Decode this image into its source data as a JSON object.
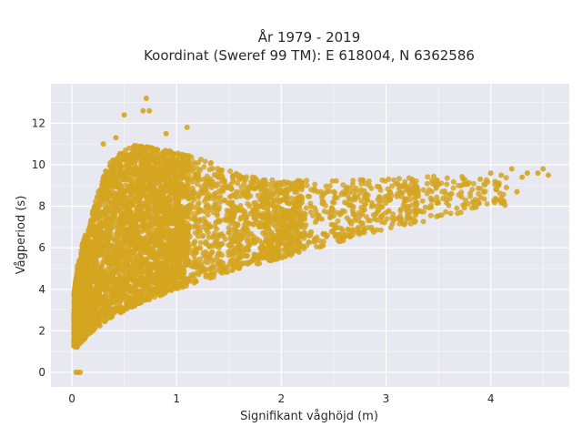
{
  "chart_data": {
    "type": "scatter",
    "title": "År 1979 - 2019",
    "subtitle": "Koordinat (Sweref 99 TM): E 618004, N 6362586",
    "xlabel": "Signifikant våghöjd (m)",
    "ylabel": "Vågperiod (s)",
    "xlim": [
      -0.2,
      4.75
    ],
    "ylim": [
      -0.7,
      13.9
    ],
    "x_ticks": [
      0,
      1,
      2,
      3,
      4
    ],
    "y_ticks": [
      0,
      2,
      4,
      6,
      8,
      10,
      12
    ],
    "grid": true,
    "legend": "none",
    "marker_color": "#d4a520",
    "plot_background": "#e8e8f0",
    "grid_color": "#ffffff",
    "envelope": {
      "description_of_point_cloud_bounds": "",
      "upper": [
        [
          0.0,
          3.0
        ],
        [
          0.05,
          5.0
        ],
        [
          0.1,
          6.2
        ],
        [
          0.15,
          7.0
        ],
        [
          0.2,
          7.8
        ],
        [
          0.3,
          9.5
        ],
        [
          0.4,
          10.4
        ],
        [
          0.6,
          11.0
        ],
        [
          0.8,
          10.8
        ],
        [
          1.0,
          10.6
        ],
        [
          1.3,
          10.2
        ],
        [
          1.6,
          9.5
        ],
        [
          2.0,
          9.2
        ],
        [
          2.5,
          9.3
        ],
        [
          3.0,
          9.3
        ],
        [
          3.5,
          9.5
        ],
        [
          4.0,
          9.4
        ]
      ],
      "lower": [
        [
          0.0,
          1.3
        ],
        [
          0.05,
          1.2
        ],
        [
          0.1,
          1.5
        ],
        [
          0.2,
          2.0
        ],
        [
          0.4,
          2.7
        ],
        [
          0.6,
          3.2
        ],
        [
          0.8,
          3.6
        ],
        [
          1.0,
          4.0
        ],
        [
          1.3,
          4.5
        ],
        [
          1.6,
          5.0
        ],
        [
          2.0,
          5.5
        ],
        [
          2.5,
          6.2
        ],
        [
          3.0,
          6.9
        ],
        [
          3.5,
          7.4
        ],
        [
          4.0,
          8.0
        ]
      ]
    },
    "outliers": [
      [
        0.71,
        13.2
      ],
      [
        0.68,
        12.6
      ],
      [
        0.74,
        12.6
      ],
      [
        0.5,
        12.4
      ],
      [
        0.42,
        11.3
      ],
      [
        1.1,
        11.8
      ],
      [
        0.9,
        11.5
      ],
      [
        0.3,
        11.0
      ],
      [
        0.04,
        0.0
      ],
      [
        0.06,
        0.0
      ],
      [
        0.08,
        0.0
      ],
      [
        4.5,
        9.8
      ],
      [
        4.45,
        9.6
      ],
      [
        4.55,
        9.5
      ],
      [
        4.2,
        9.8
      ],
      [
        4.3,
        9.4
      ],
      [
        4.35,
        9.6
      ],
      [
        4.1,
        9.5
      ],
      [
        4.0,
        9.6
      ],
      [
        3.9,
        9.3
      ],
      [
        4.15,
        8.9
      ],
      [
        4.25,
        8.7
      ]
    ]
  }
}
